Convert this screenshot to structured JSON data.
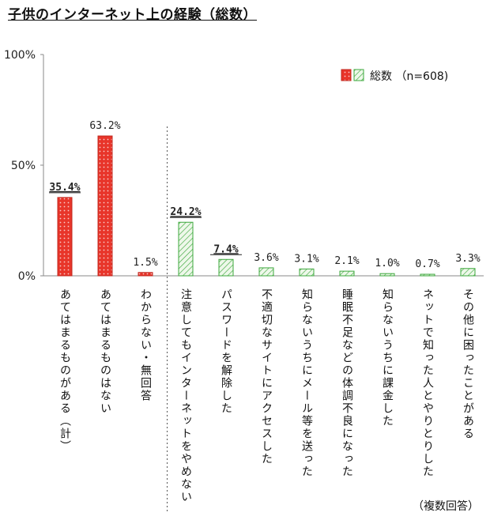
{
  "title": "子供のインターネット上の経験（総数）",
  "footnote": "（複数回答）",
  "legend": {
    "label": "総数 （n=608)"
  },
  "colors": {
    "red": "#e8352a",
    "red_dark": "#c0281f",
    "green": "#3ca83c",
    "green_fill": "#e9f6e3"
  },
  "chart_data": {
    "type": "bar",
    "categories": [
      "あてはまるものがある（計）",
      "あてはまるものはない",
      "わからない・無回答",
      "注意してもインターネットをやめない",
      "パスワードを解除した",
      "不適切なサイトにアクセスした",
      "知らないうちにメール等を送った",
      "睡眠不足などの体調不良になった",
      "知らないうちに課金した",
      "ネットで知った人とやりとりした",
      "その他に困ったことがある"
    ],
    "values": [
      35.4,
      63.2,
      1.5,
      24.2,
      7.4,
      3.6,
      3.1,
      2.1,
      1.0,
      0.7,
      3.3
    ],
    "value_labels": [
      "35.4%",
      "63.2%",
      "1.5%",
      "24.2%",
      "7.4%",
      "3.6%",
      "3.1%",
      "2.1%",
      "1.0%",
      "0.7%",
      "3.3%"
    ],
    "styles": [
      "red",
      "red",
      "red",
      "green",
      "green",
      "green",
      "green",
      "green",
      "green",
      "green",
      "green"
    ],
    "emphasized": [
      true,
      false,
      false,
      true,
      true,
      false,
      false,
      false,
      false,
      false,
      false
    ],
    "ylim": [
      0,
      100
    ],
    "yticks": [
      0,
      50,
      100
    ],
    "ytick_labels": [
      "0%",
      "50%",
      "100%"
    ],
    "grid": false,
    "legend_position": "top-right",
    "divider_after_index": 2
  }
}
